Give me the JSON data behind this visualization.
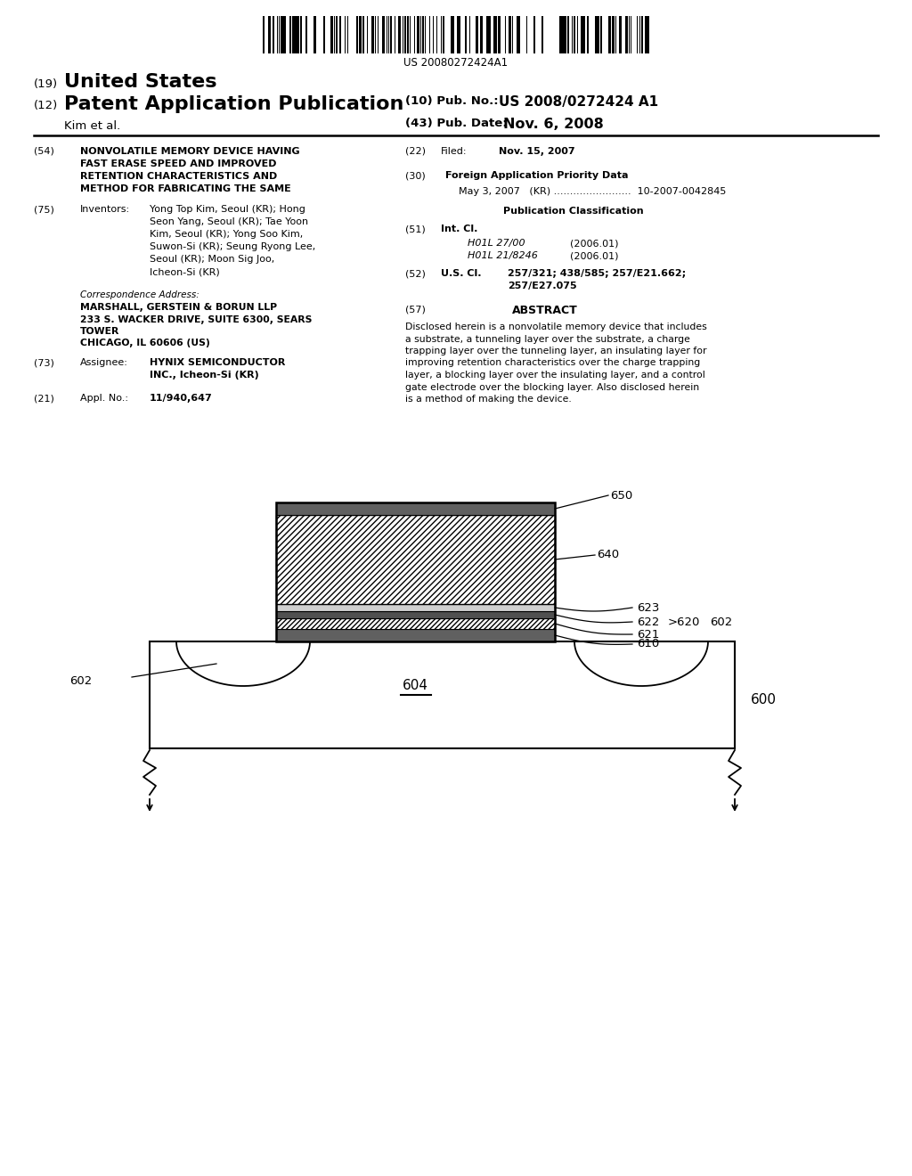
{
  "background_color": "#ffffff",
  "barcode_text": "US 20080272424A1",
  "title19": "(19)",
  "title19_text": "United States",
  "title12": "(12)",
  "title12_text": "Patent Application Publication",
  "pub_no_label": "(10) Pub. No.:",
  "pub_no_value": "US 2008/0272424 A1",
  "author": "Kim et al.",
  "pub_date_label": "(43) Pub. Date:",
  "pub_date_value": "Nov. 6, 2008",
  "field54_label": "(54)",
  "field54_line1": "NONVOLATILE MEMORY DEVICE HAVING",
  "field54_line2": "FAST ERASE SPEED AND IMPROVED",
  "field54_line3": "RETENTION CHARACTERISTICS AND",
  "field54_line4": "METHOD FOR FABRICATING THE SAME",
  "field75_label": "(75)",
  "field75_title": "Inventors:",
  "field75_lines": [
    "Yong Top Kim, Seoul (KR); Hong",
    "Seon Yang, Seoul (KR); Tae Yoon",
    "Kim, Seoul (KR); Yong Soo Kim,",
    "Suwon-Si (KR); Seung Ryong Lee,",
    "Seoul (KR); Moon Sig Joo,",
    "Icheon-Si (KR)"
  ],
  "corr_title": "Correspondence Address:",
  "corr_lines": [
    "MARSHALL, GERSTEIN & BORUN LLP",
    "233 S. WACKER DRIVE, SUITE 6300, SEARS",
    "TOWER",
    "CHICAGO, IL 60606 (US)"
  ],
  "field73_label": "(73)",
  "field73_title": "Assignee:",
  "field73_line1": "HYNIX SEMICONDUCTOR",
  "field73_line2": "INC., Icheon-Si (KR)",
  "field21_label": "(21)",
  "field21_title": "Appl. No.:",
  "field21_text": "11/940,647",
  "field22_label": "(22)",
  "field22_title": "Filed:",
  "field22_text": "Nov. 15, 2007",
  "field30_label": "(30)",
  "field30_title": "Foreign Application Priority Data",
  "field30_text": "May 3, 2007   (KR) ........................  10-2007-0042845",
  "pub_class_title": "Publication Classification",
  "field51_label": "(51)",
  "field51_title": "Int. Cl.",
  "field51_text1": "H01L 27/00",
  "field51_text1_date": "(2006.01)",
  "field51_text2": "H01L 21/8246",
  "field51_text2_date": "(2006.01)",
  "field52_label": "(52)",
  "field52_title": "U.S. Cl.",
  "field52_line1": "257/321; 438/585; 257/E21.662;",
  "field52_line2": "257/E27.075",
  "field57_label": "(57)",
  "field57_title": "ABSTRACT",
  "abstract_lines": [
    "Disclosed herein is a nonvolatile memory device that includes",
    "a substrate, a tunneling layer over the substrate, a charge",
    "trapping layer over the tunneling layer, an insulating layer for",
    "improving retention characteristics over the charge trapping",
    "layer, a blocking layer over the insulating layer, and a control",
    "gate electrode over the blocking layer. Also disclosed herein",
    "is a method of making the device."
  ]
}
